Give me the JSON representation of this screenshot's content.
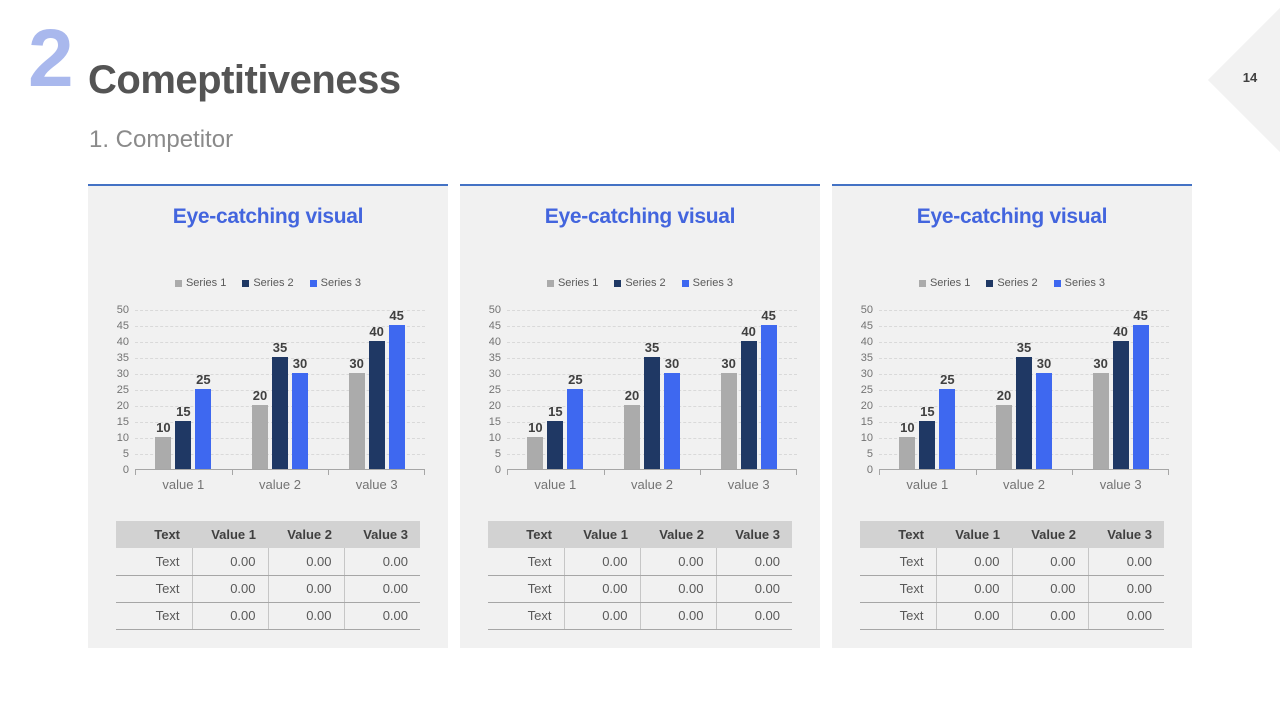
{
  "slide": {
    "section_number": "2",
    "title": "Comeptitiveness",
    "subtitle": "1. Competitor",
    "page_number": "14"
  },
  "colors": {
    "accent_title_blue": "#4365de",
    "panel_top_line": "#4472c4",
    "series1_gray": "#ababab",
    "series2_navy": "#1f3864",
    "series3_blue": "#3e68f0",
    "panel_background": "#f1f1f1",
    "section_number_blue": "#a9b8ed"
  },
  "chart_data": [
    {
      "type": "bar",
      "title": "",
      "categories": [
        "value 1",
        "value 2",
        "value 3"
      ],
      "series": [
        {
          "name": "Series 1",
          "color": "#ababab",
          "values": [
            10,
            20,
            30
          ]
        },
        {
          "name": "Series 2",
          "color": "#1f3864",
          "values": [
            15,
            35,
            40
          ]
        },
        {
          "name": "Series 3",
          "color": "#3e68f0",
          "values": [
            25,
            30,
            45
          ]
        }
      ],
      "ylim": [
        0,
        50
      ],
      "ytick_step": 5,
      "grid": "dashed-horizontal",
      "legend_position": "top",
      "data_labels": true
    },
    {
      "type": "bar",
      "title": "",
      "categories": [
        "value 1",
        "value 2",
        "value 3"
      ],
      "series": [
        {
          "name": "Series 1",
          "color": "#ababab",
          "values": [
            10,
            20,
            30
          ]
        },
        {
          "name": "Series 2",
          "color": "#1f3864",
          "values": [
            15,
            35,
            40
          ]
        },
        {
          "name": "Series 3",
          "color": "#3e68f0",
          "values": [
            25,
            30,
            45
          ]
        }
      ],
      "ylim": [
        0,
        50
      ],
      "ytick_step": 5,
      "grid": "dashed-horizontal",
      "legend_position": "top",
      "data_labels": true
    },
    {
      "type": "bar",
      "title": "",
      "categories": [
        "value 1",
        "value 2",
        "value 3"
      ],
      "series": [
        {
          "name": "Series 1",
          "color": "#ababab",
          "values": [
            10,
            20,
            30
          ]
        },
        {
          "name": "Series 2",
          "color": "#1f3864",
          "values": [
            15,
            35,
            40
          ]
        },
        {
          "name": "Series 3",
          "color": "#3e68f0",
          "values": [
            25,
            30,
            45
          ]
        }
      ],
      "ylim": [
        0,
        50
      ],
      "ytick_step": 5,
      "grid": "dashed-horizontal",
      "legend_position": "top",
      "data_labels": true
    }
  ],
  "panels": [
    {
      "title": "Eye-catching visual",
      "chart_index": 0,
      "table": {
        "headers": [
          "Text",
          "Value 1",
          "Value 2",
          "Value 3"
        ],
        "rows": [
          [
            "Text",
            "0.00",
            "0.00",
            "0.00"
          ],
          [
            "Text",
            "0.00",
            "0.00",
            "0.00"
          ],
          [
            "Text",
            "0.00",
            "0.00",
            "0.00"
          ]
        ]
      }
    },
    {
      "title": "Eye-catching visual",
      "chart_index": 1,
      "table": {
        "headers": [
          "Text",
          "Value 1",
          "Value 2",
          "Value 3"
        ],
        "rows": [
          [
            "Text",
            "0.00",
            "0.00",
            "0.00"
          ],
          [
            "Text",
            "0.00",
            "0.00",
            "0.00"
          ],
          [
            "Text",
            "0.00",
            "0.00",
            "0.00"
          ]
        ]
      }
    },
    {
      "title": "Eye-catching visual",
      "chart_index": 2,
      "table": {
        "headers": [
          "Text",
          "Value 1",
          "Value 2",
          "Value 3"
        ],
        "rows": [
          [
            "Text",
            "0.00",
            "0.00",
            "0.00"
          ],
          [
            "Text",
            "0.00",
            "0.00",
            "0.00"
          ],
          [
            "Text",
            "0.00",
            "0.00",
            "0.00"
          ]
        ]
      }
    }
  ],
  "layout": {
    "panel_lefts": [
      88,
      460,
      832
    ]
  }
}
